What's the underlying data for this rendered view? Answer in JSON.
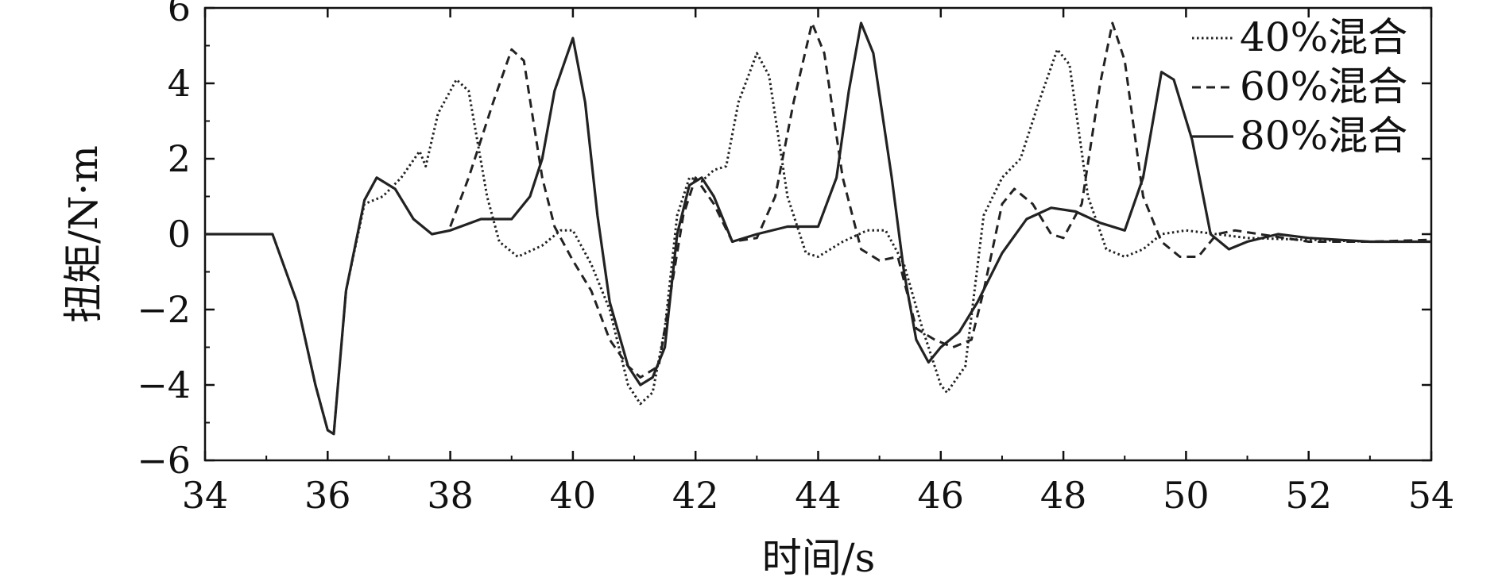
{
  "chart_data": {
    "type": "line",
    "xlabel": "时间/s",
    "ylabel": "扭矩/N·m",
    "xlim": [
      34,
      54
    ],
    "ylim": [
      -6,
      6
    ],
    "xticks": [
      "34",
      "36",
      "38",
      "40",
      "42",
      "44",
      "46",
      "48",
      "50",
      "52",
      "54"
    ],
    "yticks": [
      "−6",
      "−4",
      "−2",
      "0",
      "2",
      "4",
      "6"
    ],
    "xtick_values": [
      34,
      36,
      38,
      40,
      42,
      44,
      46,
      48,
      50,
      52,
      54
    ],
    "ytick_values": [
      -6,
      -4,
      -2,
      0,
      2,
      4,
      6
    ],
    "grid": false,
    "legend_position": "top-right",
    "series": [
      {
        "name": "40%混合",
        "style": "dotted",
        "color": "#222222",
        "points": [
          [
            34,
            0
          ],
          [
            35,
            0
          ],
          [
            35.1,
            0
          ],
          [
            35.5,
            -1.8
          ],
          [
            35.8,
            -4.0
          ],
          [
            36,
            -5.2
          ],
          [
            36.1,
            -5.3
          ],
          [
            36.3,
            -1.5
          ],
          [
            36.6,
            0.8
          ],
          [
            36.9,
            1.0
          ],
          [
            37.2,
            1.5
          ],
          [
            37.5,
            2.2
          ],
          [
            37.6,
            1.8
          ],
          [
            37.8,
            3.2
          ],
          [
            38.1,
            4.1
          ],
          [
            38.3,
            3.8
          ],
          [
            38.6,
            1.0
          ],
          [
            38.8,
            -0.2
          ],
          [
            39.1,
            -0.6
          ],
          [
            39.5,
            -0.3
          ],
          [
            39.8,
            0.1
          ],
          [
            40.0,
            0.1
          ],
          [
            40.3,
            -0.8
          ],
          [
            40.6,
            -2.0
          ],
          [
            40.9,
            -4.0
          ],
          [
            41.1,
            -4.5
          ],
          [
            41.3,
            -4.2
          ],
          [
            41.5,
            -2.5
          ],
          [
            41.7,
            0.5
          ],
          [
            41.9,
            1.5
          ],
          [
            42.1,
            1.4
          ],
          [
            42.3,
            1.7
          ],
          [
            42.5,
            1.8
          ],
          [
            42.7,
            3.5
          ],
          [
            43.0,
            4.8
          ],
          [
            43.2,
            4.2
          ],
          [
            43.5,
            1.0
          ],
          [
            43.8,
            -0.5
          ],
          [
            44.0,
            -0.6
          ],
          [
            44.4,
            -0.2
          ],
          [
            44.8,
            0.1
          ],
          [
            45.1,
            0.1
          ],
          [
            45.4,
            -0.8
          ],
          [
            45.7,
            -2.5
          ],
          [
            46.0,
            -4.0
          ],
          [
            46.1,
            -4.2
          ],
          [
            46.4,
            -3.5
          ],
          [
            46.7,
            0.5
          ],
          [
            47.0,
            1.5
          ],
          [
            47.3,
            2.0
          ],
          [
            47.6,
            3.5
          ],
          [
            47.9,
            4.9
          ],
          [
            48.1,
            4.5
          ],
          [
            48.4,
            1.0
          ],
          [
            48.7,
            -0.4
          ],
          [
            49.0,
            -0.6
          ],
          [
            49.3,
            -0.4
          ],
          [
            49.6,
            0.0
          ],
          [
            50.0,
            0.1
          ],
          [
            50.5,
            0.0
          ],
          [
            51.0,
            -0.1
          ],
          [
            52.0,
            -0.15
          ],
          [
            53.0,
            -0.2
          ],
          [
            54.0,
            -0.2
          ]
        ]
      },
      {
        "name": "60%混合",
        "style": "dashed",
        "color": "#222222",
        "points": [
          [
            38.0,
            0.2
          ],
          [
            38.3,
            1.5
          ],
          [
            38.5,
            2.5
          ],
          [
            38.7,
            3.5
          ],
          [
            39.0,
            4.9
          ],
          [
            39.2,
            4.6
          ],
          [
            39.5,
            1.5
          ],
          [
            39.7,
            0.2
          ],
          [
            40.0,
            -0.7
          ],
          [
            40.3,
            -1.5
          ],
          [
            40.6,
            -2.8
          ],
          [
            40.9,
            -3.5
          ],
          [
            41.1,
            -3.8
          ],
          [
            41.4,
            -3.5
          ],
          [
            41.6,
            -1.5
          ],
          [
            41.8,
            0.5
          ],
          [
            42.0,
            1.5
          ],
          [
            42.3,
            0.8
          ],
          [
            42.6,
            -0.2
          ],
          [
            43.0,
            -0.1
          ],
          [
            43.3,
            1.0
          ],
          [
            43.6,
            3.5
          ],
          [
            43.9,
            5.6
          ],
          [
            44.1,
            4.8
          ],
          [
            44.4,
            1.5
          ],
          [
            44.7,
            -0.4
          ],
          [
            45.0,
            -0.7
          ],
          [
            45.3,
            -0.6
          ],
          [
            45.6,
            -2.5
          ],
          [
            45.9,
            -2.8
          ],
          [
            46.2,
            -3.0
          ],
          [
            46.5,
            -2.8
          ],
          [
            46.7,
            -1.5
          ],
          [
            47.0,
            0.8
          ],
          [
            47.2,
            1.2
          ],
          [
            47.5,
            0.8
          ],
          [
            47.8,
            0.0
          ],
          [
            48.0,
            -0.1
          ],
          [
            48.3,
            0.8
          ],
          [
            48.6,
            4.0
          ],
          [
            48.8,
            5.6
          ],
          [
            49.0,
            4.6
          ],
          [
            49.3,
            1.0
          ],
          [
            49.6,
            -0.2
          ],
          [
            49.9,
            -0.6
          ],
          [
            50.2,
            -0.6
          ],
          [
            50.5,
            0.0
          ],
          [
            50.8,
            0.1
          ],
          [
            51.2,
            0.0
          ],
          [
            52.0,
            -0.2
          ],
          [
            53.0,
            -0.2
          ],
          [
            54.0,
            -0.15
          ]
        ]
      },
      {
        "name": "80%混合",
        "style": "solid",
        "color": "#222222",
        "points": [
          [
            34,
            0
          ],
          [
            35,
            0
          ],
          [
            35.1,
            0
          ],
          [
            35.5,
            -1.8
          ],
          [
            35.8,
            -4.0
          ],
          [
            36,
            -5.2
          ],
          [
            36.1,
            -5.3
          ],
          [
            36.3,
            -1.5
          ],
          [
            36.6,
            0.9
          ],
          [
            36.8,
            1.5
          ],
          [
            37.1,
            1.2
          ],
          [
            37.4,
            0.4
          ],
          [
            37.7,
            0.0
          ],
          [
            38.0,
            0.1
          ],
          [
            38.5,
            0.4
          ],
          [
            39.0,
            0.4
          ],
          [
            39.3,
            1.0
          ],
          [
            39.5,
            2.0
          ],
          [
            39.7,
            3.8
          ],
          [
            40.0,
            5.2
          ],
          [
            40.2,
            3.5
          ],
          [
            40.4,
            0.5
          ],
          [
            40.6,
            -1.8
          ],
          [
            40.9,
            -3.5
          ],
          [
            41.1,
            -4.0
          ],
          [
            41.3,
            -3.8
          ],
          [
            41.5,
            -3.0
          ],
          [
            41.7,
            0.0
          ],
          [
            41.9,
            1.3
          ],
          [
            42.1,
            1.5
          ],
          [
            42.3,
            1.0
          ],
          [
            42.6,
            -0.2
          ],
          [
            43.0,
            0.0
          ],
          [
            43.5,
            0.2
          ],
          [
            44.0,
            0.2
          ],
          [
            44.3,
            1.5
          ],
          [
            44.5,
            3.8
          ],
          [
            44.7,
            5.6
          ],
          [
            44.9,
            4.8
          ],
          [
            45.2,
            1.5
          ],
          [
            45.4,
            -1.0
          ],
          [
            45.6,
            -2.8
          ],
          [
            45.8,
            -3.4
          ],
          [
            46.0,
            -3.0
          ],
          [
            46.3,
            -2.6
          ],
          [
            46.6,
            -1.8
          ],
          [
            47.0,
            -0.5
          ],
          [
            47.4,
            0.4
          ],
          [
            47.8,
            0.7
          ],
          [
            48.2,
            0.6
          ],
          [
            48.6,
            0.3
          ],
          [
            49.0,
            0.1
          ],
          [
            49.3,
            1.5
          ],
          [
            49.6,
            4.3
          ],
          [
            49.8,
            4.1
          ],
          [
            50.1,
            2.5
          ],
          [
            50.4,
            0.0
          ],
          [
            50.7,
            -0.4
          ],
          [
            51.0,
            -0.2
          ],
          [
            51.5,
            0.0
          ],
          [
            52.0,
            -0.1
          ],
          [
            53.0,
            -0.2
          ],
          [
            54.0,
            -0.2
          ]
        ]
      }
    ]
  }
}
